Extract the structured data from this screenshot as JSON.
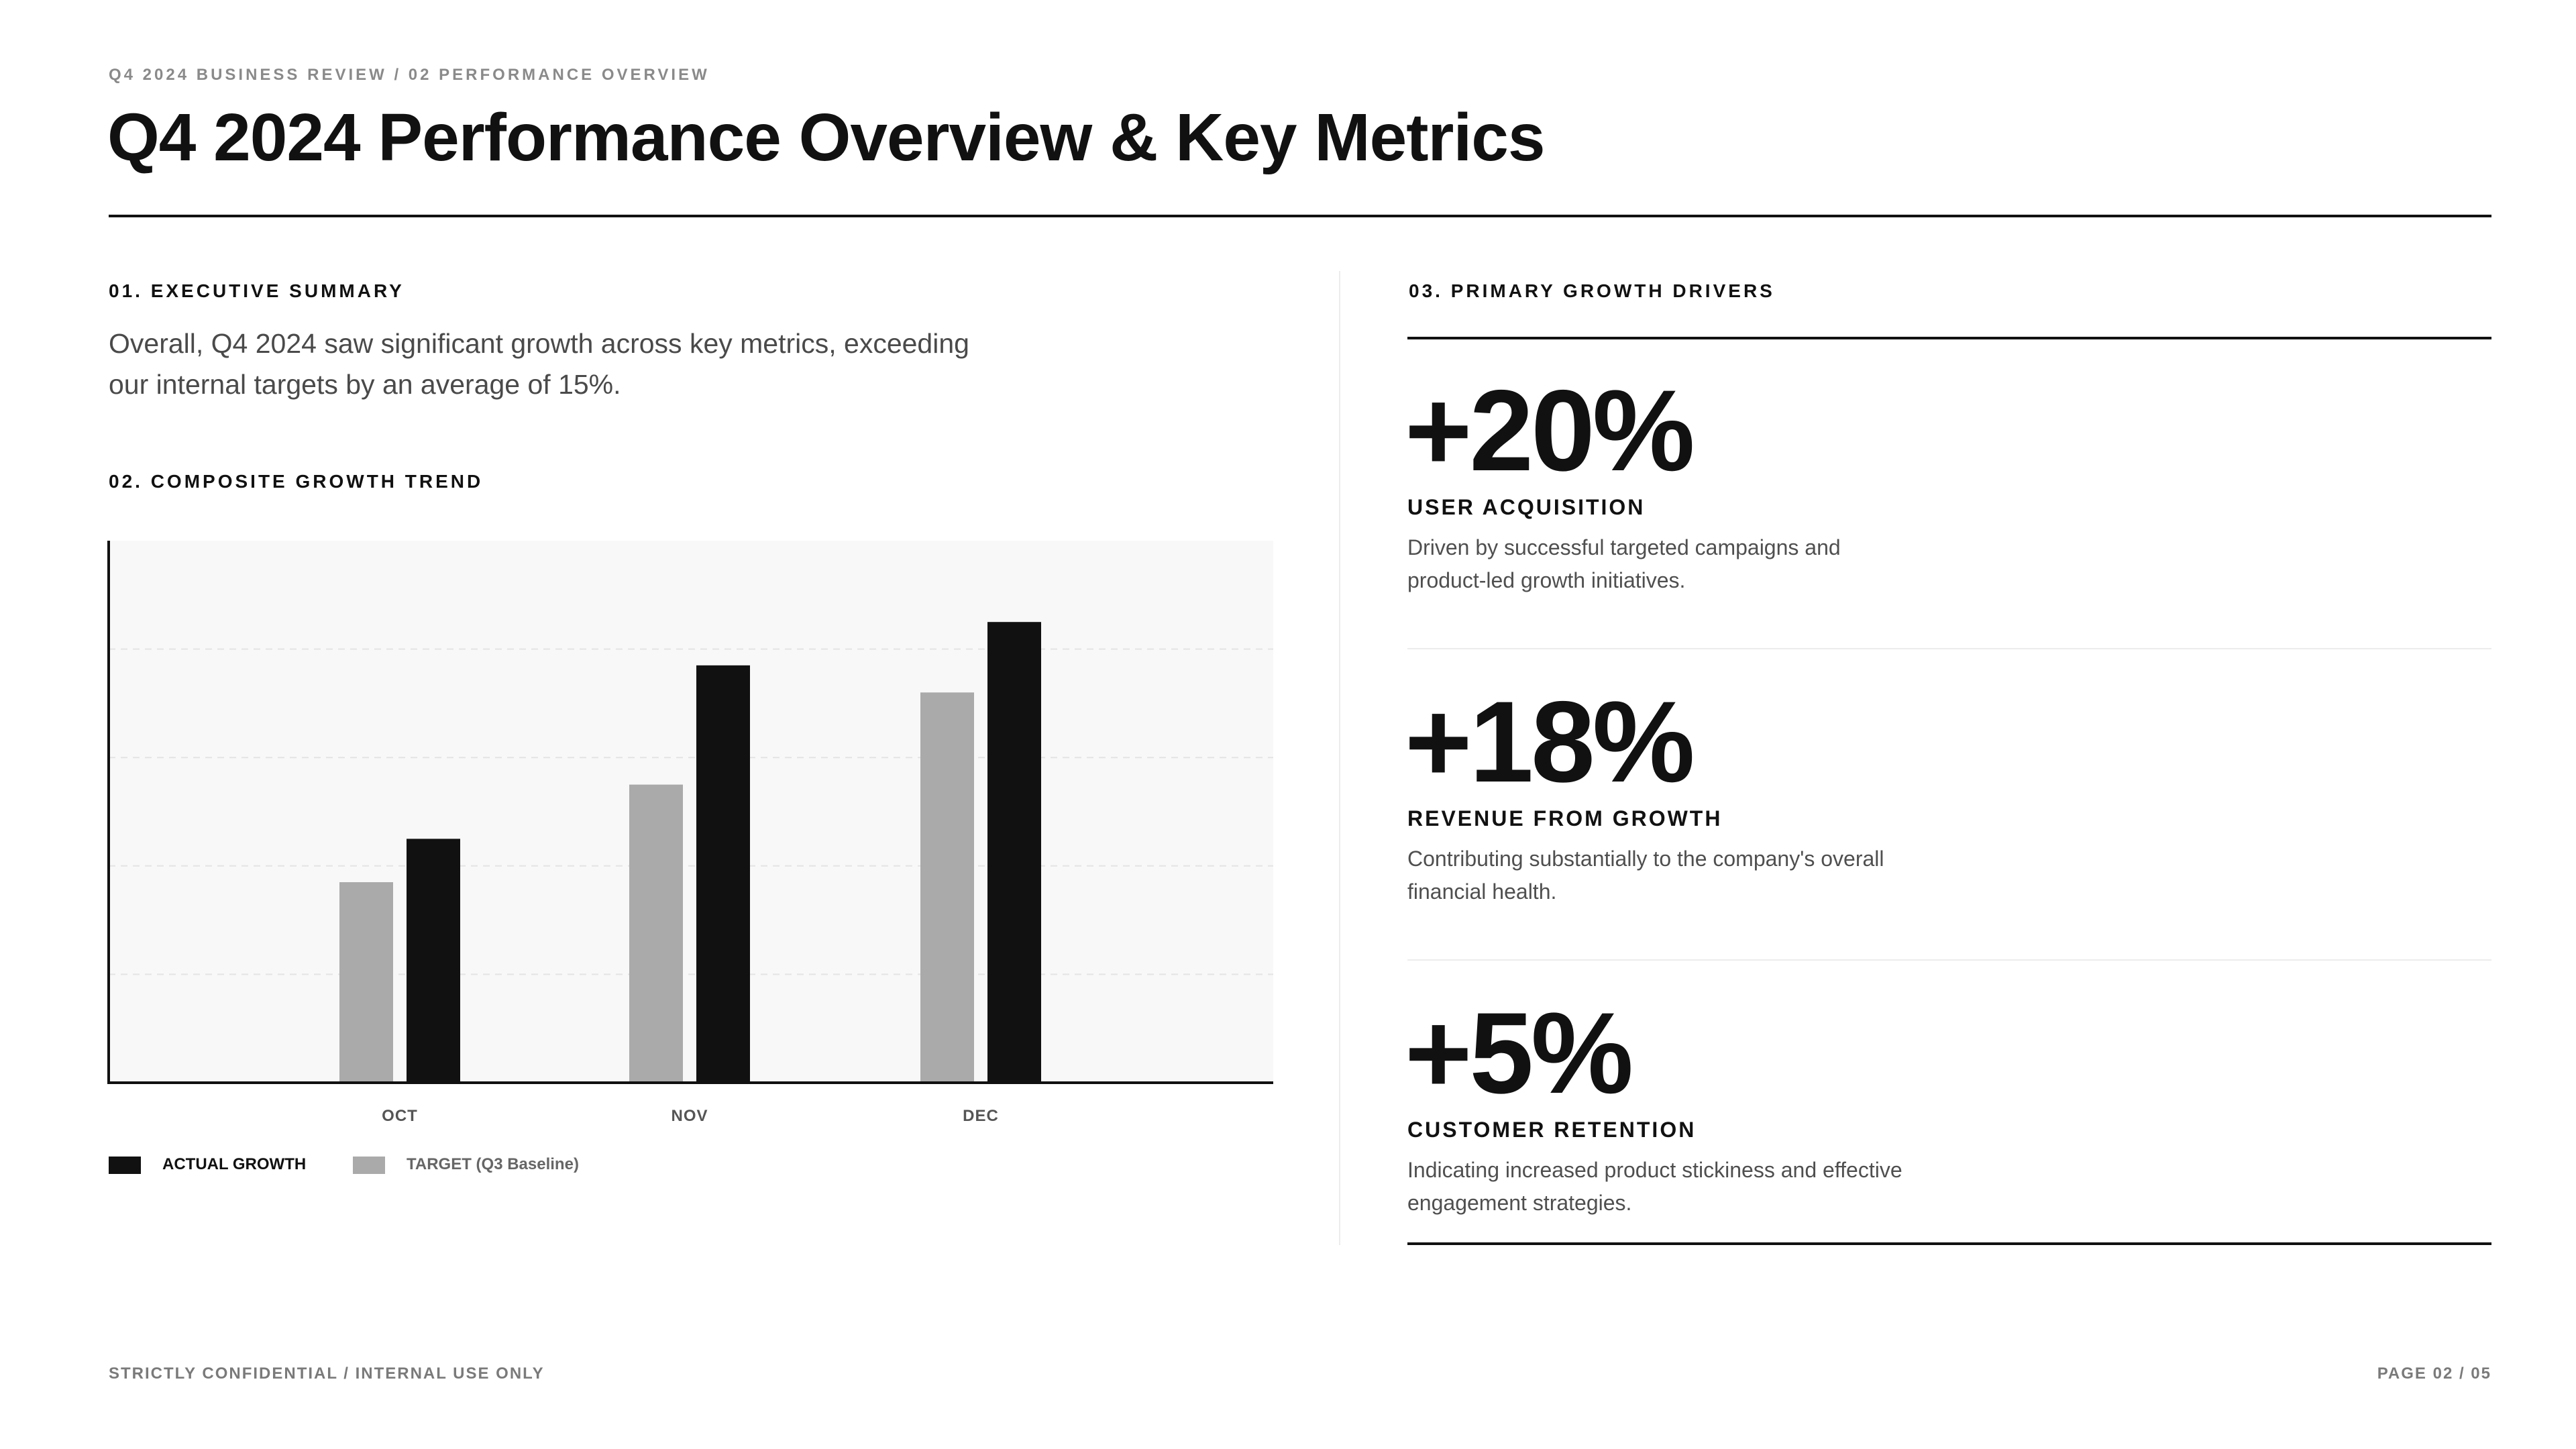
{
  "header": {
    "breadcrumb": "Q4 2024 BUSINESS REVIEW / 02 PERFORMANCE OVERVIEW",
    "title": "Q4 2024 Performance Overview & Key Metrics"
  },
  "summary": {
    "label": "01. EXECUTIVE SUMMARY",
    "text": "Overall, Q4 2024 saw significant growth across key metrics, exceeding our internal targets by an average of 15%."
  },
  "trend": {
    "label": "02. COMPOSITE GROWTH TREND"
  },
  "chart_data": {
    "type": "bar",
    "categories": [
      "OCT",
      "NOV",
      "DEC"
    ],
    "series": [
      {
        "name": "TARGET (Q3 Baseline)",
        "values": [
          37,
          55,
          72
        ],
        "color": "#aaaaaa"
      },
      {
        "name": "ACTUAL GROWTH",
        "values": [
          45,
          77,
          85
        ],
        "color": "#111111"
      }
    ],
    "ylim": [
      0,
      100
    ],
    "grid": true,
    "legend_position": "bottom-left",
    "plot_background": "#f8f8f8"
  },
  "legend": {
    "actual_label": "ACTUAL GROWTH",
    "target_label": "TARGET (Q3 Baseline)",
    "actual_color": "#111111",
    "target_color": "#aaaaaa"
  },
  "drivers": {
    "label": "03. PRIMARY GROWTH DRIVERS",
    "items": [
      {
        "value": "+20%",
        "label": "USER ACQUISITION",
        "desc": "Driven by successful targeted campaigns and product-led growth initiatives."
      },
      {
        "value": "+18%",
        "label": "REVENUE FROM GROWTH",
        "desc": "Contributing substantially to the company's overall financial health."
      },
      {
        "value": "+5%",
        "label": "CUSTOMER RETENTION",
        "desc": "Indicating increased product stickiness and effective engagement strategies."
      }
    ]
  },
  "footer": {
    "left": "STRICTLY CONFIDENTIAL / INTERNAL USE ONLY",
    "right": "PAGE 02 / 05"
  }
}
